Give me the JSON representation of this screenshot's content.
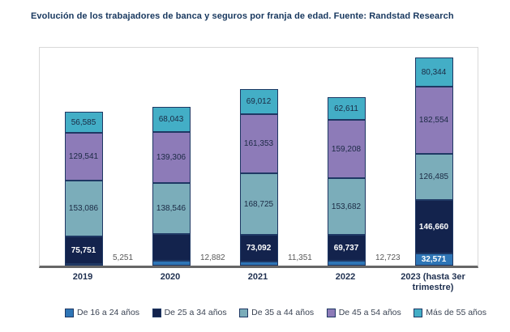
{
  "chart_data": {
    "type": "bar",
    "subtype": "stacked-vertical",
    "title": "Evolución de los trabajadores de banca y seguros por franja de edad. Fuente: Randstad Research",
    "categories": [
      "2019",
      "2020",
      "2021",
      "2022",
      "2023 (hasta 3er trimestre)"
    ],
    "units_per_pixel": 2210,
    "grid": "off",
    "y_axis_hidden": true,
    "legend_position": "bottom",
    "series": [
      {
        "name": "De 16 a 24 años",
        "color": "#2e75b6",
        "values": [
          5251,
          12882,
          11351,
          12723,
          32571
        ],
        "labels": [
          "5,251",
          "12,882",
          "11,351",
          "12,723",
          "32,571"
        ],
        "label_placement": [
          "outside",
          "outside",
          "outside",
          "outside",
          "inside"
        ],
        "inside_text_color": "#ffffff",
        "inside_bold": true,
        "outside_text_color": "#595959"
      },
      {
        "name": "De 25 a 34 años",
        "color": "#13234d",
        "values": [
          75751,
          72500,
          73092,
          69737,
          146660
        ],
        "labels": [
          "75,751",
          "",
          "73,092",
          "69,737",
          "146,660"
        ],
        "label_placement": [
          "inside",
          "inside",
          "inside",
          "inside",
          "inside"
        ],
        "inside_text_color": "#ffffff",
        "inside_bold": true,
        "estimated_values": {
          "2020": true
        }
      },
      {
        "name": "De 35 a 44 años",
        "color": "#7badba",
        "values": [
          153086,
          138546,
          168725,
          153682,
          126485
        ],
        "labels": [
          "153,086",
          "138,546",
          "168,725",
          "153,682",
          "126,485"
        ],
        "label_placement": [
          "inside",
          "inside",
          "inside",
          "inside",
          "inside"
        ],
        "inside_text_color": "#1b2a44",
        "inside_bold": false
      },
      {
        "name": "De 45 a 54 años",
        "color": "#8d7bb8",
        "values": [
          129541,
          139306,
          161353,
          159208,
          182554
        ],
        "labels": [
          "129,541",
          "139,306",
          "161,353",
          "159,208",
          "182,554"
        ],
        "label_placement": [
          "inside",
          "inside",
          "inside",
          "inside",
          "inside"
        ],
        "inside_text_color": "#1b2a44",
        "inside_bold": false
      },
      {
        "name": "Más de 55 años",
        "color": "#43aec6",
        "values": [
          56585,
          68043,
          69012,
          62611,
          80344
        ],
        "labels": [
          "56,585",
          "68,043",
          "69,012",
          "62,611",
          "80,344"
        ],
        "label_placement": [
          "inside",
          "inside",
          "inside",
          "inside",
          "inside"
        ],
        "inside_text_color": "#1b2a44",
        "inside_bold": false
      }
    ],
    "colors": {
      "segment_border": "#1f3864",
      "axis_line": "#666666",
      "plot_border": "#d9d9d9",
      "title_text": "#17375e",
      "x_label_text": "#1f3050",
      "legend_text": "#3b4454"
    }
  }
}
